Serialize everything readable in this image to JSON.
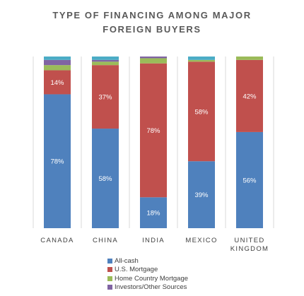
{
  "chart_data": {
    "type": "bar",
    "stacked": true,
    "title_lines": [
      "TYPE OF FINANCING AMONG MAJOR",
      "FOREIGN BUYERS"
    ],
    "categories": [
      [
        "CANADA"
      ],
      [
        "CHINA"
      ],
      [
        "INDIA"
      ],
      [
        "MEXICO"
      ],
      [
        "UNITED",
        "KINGDOM"
      ]
    ],
    "series": [
      {
        "name": "All-cash",
        "color": "#4f81bd",
        "values": [
          78,
          58,
          18,
          39,
          56
        ]
      },
      {
        "name": "U.S. Mortgage",
        "color": "#c0504d",
        "values": [
          14,
          37,
          78,
          58,
          42
        ]
      },
      {
        "name": "Home Country Mortgage",
        "color": "#9bbb59",
        "values": [
          3,
          2,
          3,
          1,
          2
        ]
      },
      {
        "name": "Investors/Other Sources",
        "color": "#8064a2",
        "values": [
          3,
          1,
          1,
          0,
          0
        ]
      },
      {
        "name": "",
        "color": "#4bacc6",
        "values": [
          2,
          2,
          0,
          2,
          0
        ]
      }
    ],
    "data_labels": [
      [
        "78%",
        "58%",
        "18%",
        "39%",
        "56%"
      ],
      [
        "14%",
        "37%",
        "78%",
        "58%",
        "42%"
      ]
    ],
    "ylim": [
      0,
      100
    ],
    "grid": false,
    "legend_position": "bottom",
    "legend_entries": [
      "All-cash",
      "U.S. Mortgage",
      "Home Country Mortgage",
      "Investors/Other Sources"
    ]
  }
}
